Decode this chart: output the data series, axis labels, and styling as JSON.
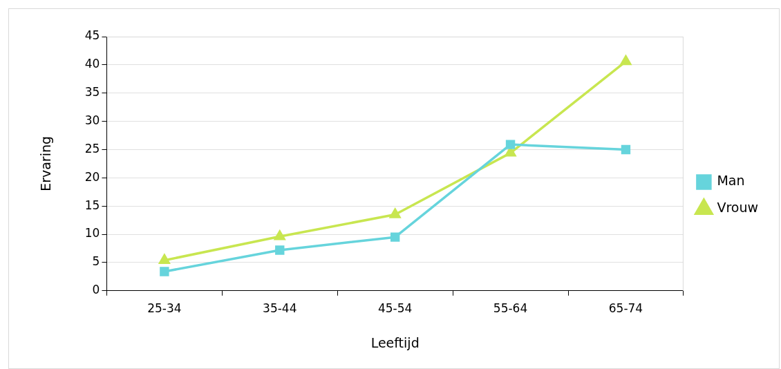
{
  "chart_data": {
    "type": "line",
    "xlabel": "Leeftijd",
    "ylabel": "Ervaring",
    "categories": [
      "25-34",
      "35-44",
      "45-54",
      "55-64",
      "65-74"
    ],
    "series": [
      {
        "name": "Man",
        "color": "#66d4dc",
        "marker": "square",
        "values": [
          3.4,
          7.2,
          9.5,
          25.9,
          25
        ]
      },
      {
        "name": "Vrouw",
        "color": "#c8e650",
        "marker": "triangle",
        "values": [
          5.4,
          9.6,
          13.5,
          24.4,
          40.6
        ]
      }
    ],
    "ylim": [
      0,
      45
    ],
    "yticks": [
      0,
      5,
      10,
      15,
      20,
      25,
      30,
      35,
      40,
      45
    ],
    "grid": "y",
    "legend": "right",
    "line_style": "solid"
  }
}
